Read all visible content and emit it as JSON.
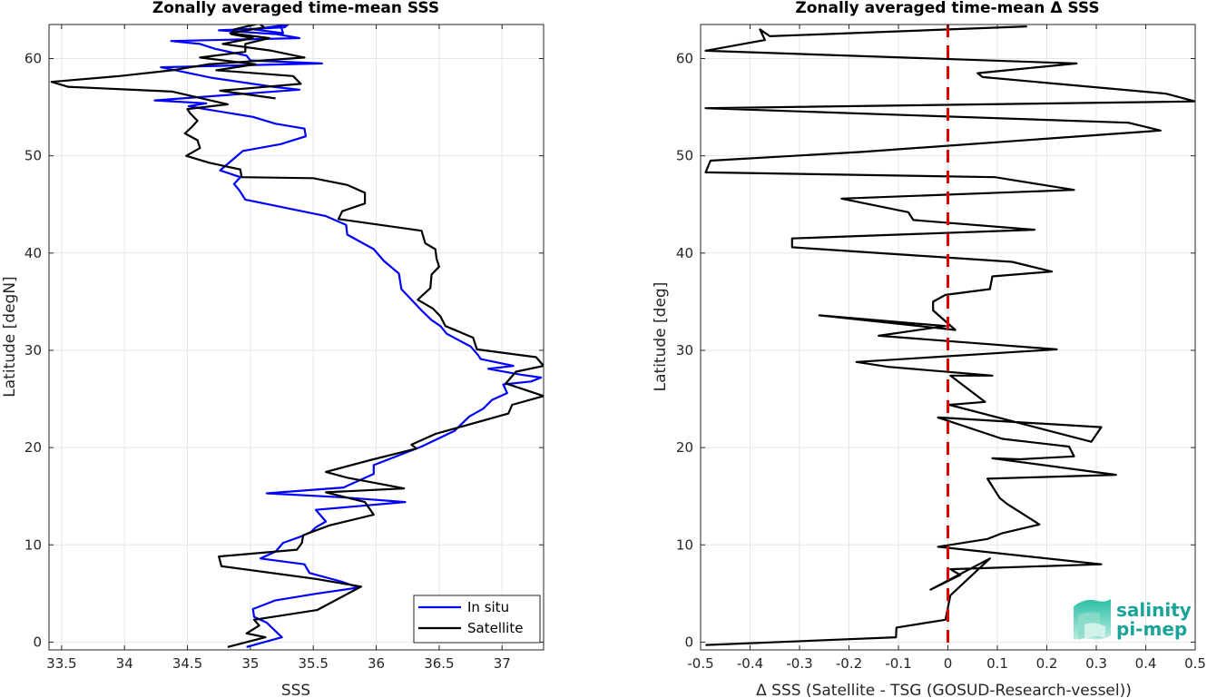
{
  "chart_data": [
    {
      "type": "line",
      "title": "Zonally averaged time-mean SSS",
      "xlabel": "SSS",
      "ylabel": "Latitude [degN]",
      "xlim": [
        33.4,
        37.33
      ],
      "ylim": [
        -0.8,
        63.5
      ],
      "xticks": [
        33.5,
        34,
        34.5,
        35,
        35.5,
        36,
        36.5,
        37
      ],
      "xtick_labels": [
        "33.5",
        "34",
        "34.5",
        "35",
        "35.5",
        "36",
        "36.5",
        "37"
      ],
      "yticks": [
        0,
        10,
        20,
        30,
        40,
        50,
        60
      ],
      "ytick_labels": [
        "0",
        "10",
        "20",
        "30",
        "40",
        "50",
        "60"
      ],
      "grid": true,
      "legend": {
        "position": "bottom-right",
        "entries": [
          "In situ",
          "Satellite"
        ]
      },
      "series": [
        {
          "name": "In situ",
          "color": "#0000ff",
          "x": [
            34.97,
            35.25,
            35.13,
            35.03,
            35.02,
            35.2,
            35.53,
            35.86,
            35.73,
            35.47,
            35.43,
            35.08,
            35.2,
            35.26,
            35.39,
            35.48,
            35.52,
            35.6,
            35.52,
            36.23,
            35.72,
            35.13,
            35.74,
            35.98,
            35.98,
            36.36,
            36.62,
            36.74,
            36.85,
            36.92,
            37.04,
            37.01,
            37.23,
            37.31,
            37.15,
            36.89,
            37.09,
            36.83,
            36.81,
            36.75,
            36.56,
            36.51,
            36.44,
            36.36,
            36.2,
            36.18,
            36.06,
            35.98,
            35.77,
            35.76,
            35.6,
            34.96,
            34.91,
            34.87,
            34.92,
            34.76,
            34.85,
            34.94,
            35.24,
            35.44,
            35.43,
            35.2,
            35.02,
            34.64,
            34.51,
            34.65,
            34.24,
            35.39,
            35.18,
            34.7,
            34.29,
            35.57,
            35.0,
            34.97,
            34.72,
            34.6,
            34.37,
            35.39,
            35.21,
            34.75,
            35.27,
            35.3,
            35.03,
            35.26,
            35.24
          ],
          "y": [
            -0.5,
            0.5,
            2.0,
            2.6,
            3.4,
            4.3,
            5.0,
            5.6,
            6.2,
            7.1,
            8.0,
            8.6,
            9.3,
            10.2,
            10.8,
            11.3,
            11.8,
            12.4,
            13.6,
            14.4,
            14.9,
            15.3,
            15.9,
            17.3,
            18.2,
            20.1,
            21.7,
            23.2,
            24.0,
            24.9,
            25.6,
            26.5,
            26.8,
            27.2,
            27.5,
            28.1,
            28.4,
            29.1,
            29.5,
            30.4,
            31.7,
            32.5,
            33.1,
            34.1,
            36.3,
            37.9,
            39.2,
            40.4,
            41.9,
            42.9,
            43.8,
            45.5,
            46.5,
            47.1,
            47.8,
            48.5,
            49.5,
            50.5,
            51.2,
            52.0,
            52.8,
            53.3,
            54.0,
            54.8,
            55.1,
            55.4,
            55.7,
            56.8,
            57.1,
            58.0,
            59.1,
            59.5,
            59.8,
            60.3,
            61.0,
            61.5,
            61.8,
            62.1,
            62.5,
            62.9,
            63.2,
            63.5,
            63.0,
            62.6,
            63.4
          ]
        },
        {
          "name": "Satellite",
          "color": "#000000",
          "x": [
            34.82,
            35.12,
            34.97,
            35.07,
            35.03,
            35.53,
            35.88,
            35.52,
            34.77,
            34.75,
            35.37,
            35.41,
            35.42,
            35.63,
            35.98,
            35.91,
            35.6,
            36.22,
            35.77,
            35.6,
            35.95,
            36.32,
            36.28,
            36.47,
            37.05,
            37.08,
            37.33,
            37.03,
            37.11,
            37.33,
            37.27,
            36.8,
            36.77,
            36.55,
            36.51,
            36.45,
            36.33,
            36.43,
            36.44,
            36.5,
            36.48,
            36.47,
            36.39,
            36.36,
            35.7,
            35.73,
            35.91,
            35.91,
            35.77,
            35.5,
            34.93,
            34.92,
            34.67,
            34.49,
            34.6,
            34.58,
            34.48,
            34.53,
            34.58,
            34.52,
            34.5,
            34.82,
            34.38,
            33.55,
            33.42,
            33.96,
            34.38,
            34.66,
            35.43,
            35.17,
            34.78,
            35.02,
            34.85,
            34.87,
            35.07,
            35.11,
            34.84,
            35.15,
            34.96,
            34.96,
            34.6,
            35.04,
            34.73,
            35.34,
            35.4,
            34.76,
            35.2
          ],
          "y": [
            -0.5,
            0.5,
            0.9,
            1.7,
            2.3,
            3.3,
            5.7,
            6.5,
            7.8,
            8.8,
            9.5,
            10.2,
            11.0,
            12.0,
            13.1,
            14.4,
            15.4,
            15.8,
            16.9,
            17.5,
            18.7,
            19.9,
            20.3,
            21.4,
            23.5,
            24.4,
            25.3,
            26.6,
            27.8,
            28.4,
            29.3,
            30.1,
            31.3,
            32.5,
            33.5,
            34.3,
            35.2,
            36.4,
            37.8,
            38.6,
            39.4,
            40.4,
            41.0,
            42.3,
            43.5,
            44.3,
            45.1,
            46.2,
            47.0,
            47.7,
            47.8,
            48.6,
            49.3,
            50.0,
            50.8,
            51.6,
            52.3,
            52.9,
            53.6,
            54.4,
            54.8,
            55.3,
            56.6,
            57.1,
            57.6,
            58.2,
            58.8,
            59.4,
            60.1,
            60.8,
            61.5,
            62.1,
            62.5,
            63.0,
            63.6,
            63.2,
            62.6,
            62.1,
            61.5,
            60.7,
            60.1,
            59.4,
            58.8,
            58.2,
            57.4,
            56.7,
            55.9
          ]
        }
      ]
    },
    {
      "type": "line",
      "title": "Zonally averaged time-mean Δ SSS",
      "xlabel": "Δ SSS (Satellite - TSG (GOSUD-Research-vessel))",
      "ylabel": "Latitude [deg]",
      "xlim": [
        -0.5,
        0.5
      ],
      "ylim": [
        -0.8,
        63.5
      ],
      "xticks": [
        -0.5,
        -0.4,
        -0.3,
        -0.2,
        -0.1,
        0,
        0.1,
        0.2,
        0.3,
        0.4,
        0.5
      ],
      "xtick_labels": [
        "-0.5",
        "-0.4",
        "-0.3",
        "-0.2",
        "-0.1",
        "0",
        "0.1",
        "0.2",
        "0.3",
        "0.4",
        "0.5"
      ],
      "yticks": [
        0,
        10,
        20,
        30,
        40,
        50,
        60
      ],
      "ytick_labels": [
        "0",
        "10",
        "20",
        "30",
        "40",
        "50",
        "60"
      ],
      "grid": true,
      "reference_line": {
        "x": 0,
        "color": "#e00000",
        "style": "dashed"
      },
      "series": [
        {
          "name": "",
          "color": "#000000",
          "x": [
            -0.49,
            -0.105,
            -0.104,
            -0.005,
            0.005,
            0.085,
            -0.035,
            0.025,
            0.005,
            0.31,
            -0.02,
            0.08,
            0.11,
            0.185,
            0.12,
            0.105,
            0.08,
            0.34,
            0.09,
            0.145,
            0.255,
            0.245,
            0.11,
            -0.02,
            0.31,
            0.29,
            0.003,
            0.075,
            0.005,
            0.09,
            -0.12,
            -0.185,
            0.22,
            -0.14,
            -0.005,
            -0.26,
            0.015,
            -0.03,
            -0.03,
            -0.005,
            0.085,
            0.09,
            0.21,
            0.13,
            -0.315,
            -0.315,
            0.175,
            -0.07,
            -0.08,
            -0.215,
            0.255,
            0.095,
            -0.49,
            -0.48,
            -0.175,
            0.43,
            0.365,
            -0.49,
            0.5,
            0.44,
            0.07,
            0.06,
            0.26,
            -0.49,
            -0.37,
            -0.38,
            -0.36,
            0.16
          ],
          "y": [
            -0.3,
            0.5,
            1.5,
            2.3,
            4.8,
            8.6,
            5.4,
            6.9,
            7.5,
            8.0,
            9.8,
            10.6,
            11.2,
            12.1,
            14.2,
            14.8,
            16.8,
            17.2,
            18.9,
            18.8,
            19.1,
            20.1,
            20.9,
            23.1,
            22.1,
            20.6,
            24.4,
            24.7,
            27.4,
            27.4,
            28.3,
            28.8,
            30.1,
            31.5,
            32.5,
            33.6,
            32.1,
            34.1,
            35.0,
            35.7,
            36.3,
            37.6,
            38.1,
            39.1,
            40.6,
            41.5,
            42.4,
            43.4,
            44.2,
            45.6,
            46.5,
            47.8,
            48.3,
            49.5,
            50.4,
            52.6,
            53.4,
            54.9,
            55.6,
            56.4,
            58.1,
            58.5,
            59.5,
            60.8,
            61.9,
            63.0,
            62.3,
            63.3
          ]
        }
      ]
    }
  ],
  "logo": {
    "line1": "salinity",
    "line2": "pi-mep"
  }
}
